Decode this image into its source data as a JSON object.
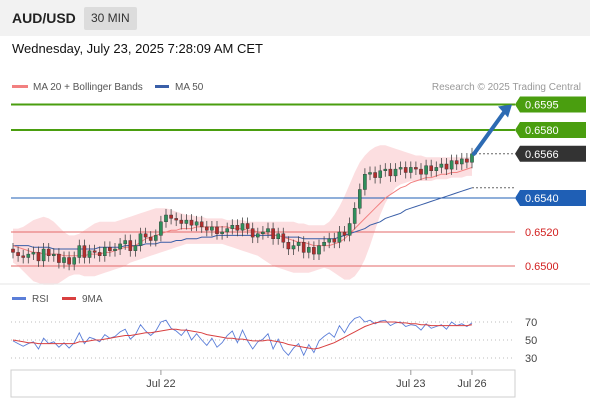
{
  "header": {
    "pair": "AUD/USD",
    "timeframe": "30 MIN"
  },
  "timestamp": "Wednesday, July 23, 2025 7:28:09 AM CET",
  "colors": {
    "up_candle": "#2f8f5b",
    "down_candle": "#b22d2d",
    "band_fill": "#fbd3d6",
    "ma20": "#f28080",
    "ma50": "#3a5fa8",
    "target": "#4a9e0f",
    "support": "#1f5fb5",
    "current": "#333333",
    "resistance_line": "#e36a6a",
    "resistance_text": "#d21f1f",
    "arrow": "#2d6bb3",
    "rsi": "#5b7ed8",
    "rsi_ma": "#d94040"
  },
  "chart_data": {
    "type": "candlestick",
    "price_panel": {
      "legend": [
        {
          "name": "MA 20 + Bollinger Bands",
          "icon": "ma20-icon"
        },
        {
          "name": "MA 50",
          "icon": "ma50-icon"
        }
      ],
      "watermark": "Research © 2025 Trading Central",
      "levels": [
        {
          "value": 0.6595,
          "label": "0.6595",
          "kind": "target"
        },
        {
          "value": 0.658,
          "label": "0.6580",
          "kind": "target"
        },
        {
          "value": 0.6566,
          "label": "0.6566",
          "kind": "current"
        },
        {
          "value": 0.654,
          "label": "0.6540",
          "kind": "support"
        },
        {
          "value": 0.652,
          "label": "0.6520",
          "kind": "resistance"
        },
        {
          "value": 0.65,
          "label": "0.6500",
          "kind": "resistance"
        }
      ],
      "close_series": [
        0.6508,
        0.6506,
        0.6505,
        0.6507,
        0.6508,
        0.6503,
        0.651,
        0.6506,
        0.6507,
        0.6502,
        0.6505,
        0.6501,
        0.6505,
        0.6512,
        0.6505,
        0.6509,
        0.6508,
        0.6506,
        0.6511,
        0.6509,
        0.651,
        0.6513,
        0.6515,
        0.6509,
        0.6512,
        0.6519,
        0.6517,
        0.6515,
        0.6518,
        0.6526,
        0.653,
        0.6528,
        0.6527,
        0.6525,
        0.6527,
        0.6524,
        0.6526,
        0.6523,
        0.6521,
        0.6523,
        0.6519,
        0.652,
        0.6522,
        0.6524,
        0.6521,
        0.6525,
        0.6522,
        0.6517,
        0.6519,
        0.652,
        0.6522,
        0.6516,
        0.6519,
        0.6514,
        0.651,
        0.6512,
        0.6514,
        0.6508,
        0.6511,
        0.6507,
        0.6512,
        0.6514,
        0.6516,
        0.6514,
        0.652,
        0.6518,
        0.6525,
        0.6534,
        0.6545,
        0.6554,
        0.6555,
        0.6552,
        0.6556,
        0.6557,
        0.6553,
        0.6557,
        0.6558,
        0.6555,
        0.6558,
        0.6557,
        0.6554,
        0.6559,
        0.6556,
        0.6558,
        0.656,
        0.6557,
        0.6562,
        0.656,
        0.6563,
        0.6561,
        0.6566
      ],
      "ma20_series": [
        0.6512,
        0.6511,
        0.651,
        0.6509,
        0.6508,
        0.6508,
        0.6507,
        0.6507,
        0.6507,
        0.6507,
        0.6506,
        0.6506,
        0.6506,
        0.6506,
        0.6506,
        0.6507,
        0.6507,
        0.6507,
        0.6508,
        0.6508,
        0.6509,
        0.651,
        0.6511,
        0.6511,
        0.6512,
        0.6514,
        0.6516,
        0.6517,
        0.6518,
        0.6519,
        0.652,
        0.6521,
        0.6521,
        0.6522,
        0.6522,
        0.6522,
        0.6523,
        0.6523,
        0.6523,
        0.6523,
        0.6523,
        0.6523,
        0.6523,
        0.6522,
        0.6522,
        0.6522,
        0.6521,
        0.6521,
        0.652,
        0.6519,
        0.6519,
        0.6518,
        0.6518,
        0.6517,
        0.6516,
        0.6515,
        0.6514,
        0.6514,
        0.6513,
        0.6512,
        0.6512,
        0.6512,
        0.6512,
        0.6513,
        0.6514,
        0.6516,
        0.6519,
        0.6522,
        0.6525,
        0.6528,
        0.6531,
        0.6534,
        0.6537,
        0.654,
        0.6542,
        0.6544,
        0.6546,
        0.6547,
        0.6549,
        0.655,
        0.6551,
        0.6552,
        0.6552,
        0.6553,
        0.6554,
        0.6554,
        0.6555,
        0.6555,
        0.6556,
        0.6557,
        0.6558
      ],
      "band_upper": [
        0.6522,
        0.6522,
        0.6523,
        0.6525,
        0.6527,
        0.6528,
        0.6529,
        0.6528,
        0.6526,
        0.6523,
        0.652,
        0.6518,
        0.6518,
        0.6519,
        0.6521,
        0.6523,
        0.6525,
        0.6526,
        0.6526,
        0.6526,
        0.6526,
        0.6527,
        0.6528,
        0.6529,
        0.653,
        0.6531,
        0.6532,
        0.6533,
        0.6534,
        0.6534,
        0.6534,
        0.6533,
        0.6532,
        0.6531,
        0.653,
        0.653,
        0.6529,
        0.6529,
        0.6528,
        0.6528,
        0.6528,
        0.6528,
        0.6527,
        0.6527,
        0.6527,
        0.6527,
        0.6526,
        0.6526,
        0.6526,
        0.6526,
        0.6526,
        0.6526,
        0.6526,
        0.6526,
        0.6526,
        0.6526,
        0.6525,
        0.6525,
        0.6524,
        0.6524,
        0.6524,
        0.6524,
        0.6526,
        0.653,
        0.6535,
        0.6541,
        0.6548,
        0.6555,
        0.6561,
        0.6565,
        0.6568,
        0.657,
        0.6571,
        0.6571,
        0.657,
        0.6569,
        0.6568,
        0.6567,
        0.6566,
        0.6565,
        0.6565,
        0.6564,
        0.6564,
        0.6564,
        0.6564,
        0.6564,
        0.6564,
        0.6564,
        0.6564,
        0.6564,
        0.6564
      ],
      "band_lower": [
        0.6502,
        0.65,
        0.6497,
        0.6494,
        0.6491,
        0.649,
        0.6489,
        0.6489,
        0.6489,
        0.649,
        0.6492,
        0.6494,
        0.6495,
        0.6495,
        0.6494,
        0.6494,
        0.6494,
        0.6495,
        0.6496,
        0.6497,
        0.6498,
        0.6499,
        0.65,
        0.6502,
        0.6503,
        0.6504,
        0.6505,
        0.6506,
        0.6507,
        0.6508,
        0.6509,
        0.651,
        0.6511,
        0.6512,
        0.6513,
        0.6513,
        0.6513,
        0.6513,
        0.6513,
        0.6513,
        0.6513,
        0.6513,
        0.6512,
        0.6511,
        0.651,
        0.6509,
        0.6508,
        0.6507,
        0.6506,
        0.6504,
        0.6502,
        0.65,
        0.6499,
        0.6498,
        0.6497,
        0.6496,
        0.6496,
        0.6496,
        0.6496,
        0.6497,
        0.6498,
        0.6499,
        0.6498,
        0.6496,
        0.6494,
        0.6492,
        0.6492,
        0.6494,
        0.6498,
        0.6504,
        0.6512,
        0.6521,
        0.653,
        0.6537,
        0.6542,
        0.6546,
        0.6548,
        0.6549,
        0.655,
        0.655,
        0.655,
        0.655,
        0.655,
        0.6551,
        0.6551,
        0.6551,
        0.6552,
        0.6552,
        0.6552,
        0.6553,
        0.6553
      ],
      "ma50_series": [
        0.6512,
        0.6512,
        0.6512,
        0.6512,
        0.6511,
        0.6511,
        0.6511,
        0.6511,
        0.651,
        0.651,
        0.651,
        0.651,
        0.651,
        0.651,
        0.651,
        0.651,
        0.651,
        0.6511,
        0.6511,
        0.6511,
        0.6511,
        0.6511,
        0.6512,
        0.6512,
        0.6512,
        0.6512,
        0.6513,
        0.6513,
        0.6513,
        0.6514,
        0.6514,
        0.6514,
        0.6515,
        0.6515,
        0.6516,
        0.6516,
        0.6516,
        0.6517,
        0.6517,
        0.6517,
        0.6518,
        0.6518,
        0.6518,
        0.6518,
        0.6518,
        0.6518,
        0.6518,
        0.6518,
        0.6518,
        0.6518,
        0.6518,
        0.6518,
        0.6518,
        0.6517,
        0.6517,
        0.6517,
        0.6517,
        0.6516,
        0.6516,
        0.6516,
        0.6516,
        0.6516,
        0.6516,
        0.6516,
        0.6517,
        0.6518,
        0.6519,
        0.652,
        0.6521,
        0.6522,
        0.6524,
        0.6525,
        0.6526,
        0.6528,
        0.6529,
        0.653,
        0.6531,
        0.6533,
        0.6534,
        0.6535,
        0.6536,
        0.6537,
        0.6538,
        0.6539,
        0.654,
        0.6541,
        0.6542,
        0.6543,
        0.6544,
        0.6545,
        0.6546
      ],
      "forecast_arrow": {
        "from": 0.6566,
        "to": 0.6595
      }
    },
    "rsi_panel": {
      "legend": [
        {
          "name": "RSI",
          "icon": "rsi-icon"
        },
        {
          "name": "9MA",
          "icon": "rsi-9ma-icon"
        }
      ],
      "levels": [
        {
          "value": 70,
          "label": "70"
        },
        {
          "value": 50,
          "label": "50"
        },
        {
          "value": 30,
          "label": "30"
        }
      ],
      "rsi_series": [
        49,
        46,
        43,
        46,
        48,
        40,
        52,
        46,
        48,
        42,
        47,
        41,
        47,
        58,
        46,
        53,
        51,
        48,
        56,
        52,
        54,
        59,
        62,
        51,
        56,
        67,
        60,
        55,
        60,
        70,
        72,
        63,
        60,
        55,
        62,
        50,
        57,
        50,
        44,
        52,
        42,
        47,
        55,
        60,
        47,
        61,
        49,
        40,
        48,
        51,
        57,
        40,
        51,
        39,
        33,
        41,
        46,
        33,
        45,
        36,
        49,
        54,
        58,
        53,
        66,
        58,
        68,
        74,
        76,
        70,
        72,
        68,
        71,
        72,
        66,
        69,
        70,
        65,
        67,
        66,
        61,
        68,
        63,
        65,
        67,
        62,
        70,
        66,
        68,
        65,
        69
      ],
      "rsi_ma_series": [
        50,
        49,
        48,
        47,
        47,
        46,
        46,
        46,
        46,
        46,
        46,
        46,
        46,
        48,
        48,
        49,
        50,
        50,
        51,
        52,
        53,
        54,
        55,
        55,
        56,
        57,
        58,
        58,
        59,
        60,
        61,
        62,
        62,
        61,
        61,
        60,
        59,
        58,
        56,
        55,
        54,
        53,
        52,
        52,
        51,
        51,
        50,
        49,
        49,
        49,
        50,
        49,
        48,
        47,
        45,
        44,
        43,
        42,
        41,
        40,
        41,
        43,
        45,
        47,
        50,
        53,
        56,
        59,
        62,
        65,
        67,
        69,
        70,
        70,
        70,
        70,
        69,
        69,
        68,
        68,
        67,
        67,
        66,
        66,
        66,
        66,
        66,
        66,
        66,
        66,
        67
      ]
    },
    "x_ticks": [
      {
        "label": "Jul 22",
        "index": 29
      },
      {
        "label": "Jul 23",
        "index": 78
      },
      {
        "label": "Jul 26",
        "index": 90
      }
    ]
  }
}
